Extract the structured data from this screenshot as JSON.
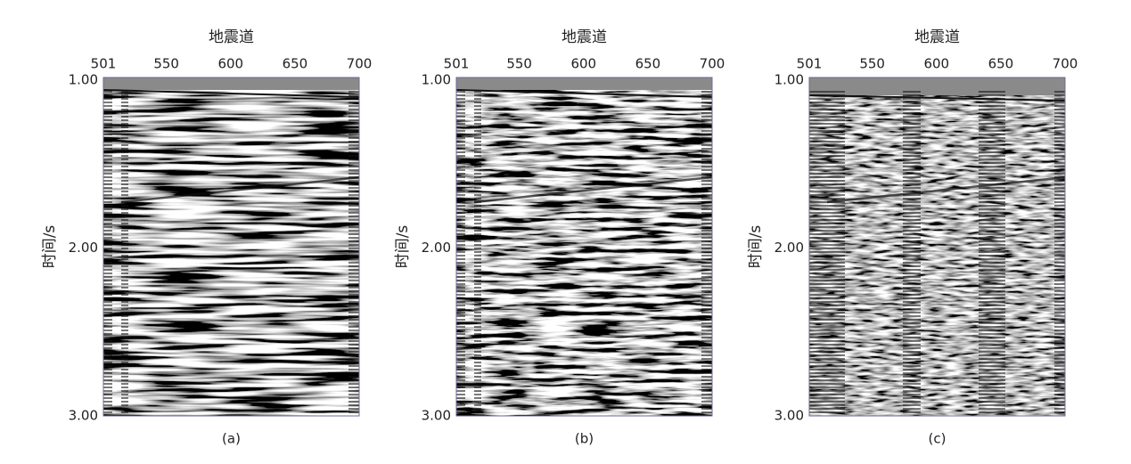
{
  "chart_data": [
    {
      "type": "seismic",
      "title": "地震道",
      "ylabel": "时间/s",
      "caption": "(a)",
      "xlim": [
        501,
        700
      ],
      "xticks": [
        501,
        550,
        600,
        650,
        700
      ],
      "ylim": [
        1,
        3
      ],
      "yticks": [
        {
          "value": 1,
          "label": "1.00"
        },
        {
          "value": 2,
          "label": "2.00"
        },
        {
          "value": 3,
          "label": "3.00"
        }
      ]
    },
    {
      "type": "seismic",
      "title": "地震道",
      "ylabel": "时间/s",
      "caption": "(b)",
      "xlim": [
        501,
        700
      ],
      "xticks": [
        501,
        550,
        600,
        650,
        700
      ],
      "ylim": [
        1,
        3
      ],
      "yticks": [
        {
          "value": 1,
          "label": "1.00"
        },
        {
          "value": 2,
          "label": "2.00"
        },
        {
          "value": 3,
          "label": "3.00"
        }
      ]
    },
    {
      "type": "seismic",
      "title": "地震道",
      "ylabel": "时间/s",
      "caption": "(c)",
      "xlim": [
        501,
        700
      ],
      "xticks": [
        501,
        550,
        600,
        650,
        700
      ],
      "ylim": [
        1,
        3
      ],
      "yticks": [
        {
          "value": 1,
          "label": "1.00"
        },
        {
          "value": 2,
          "label": "2.00"
        },
        {
          "value": 3,
          "label": "3.00"
        }
      ]
    }
  ]
}
